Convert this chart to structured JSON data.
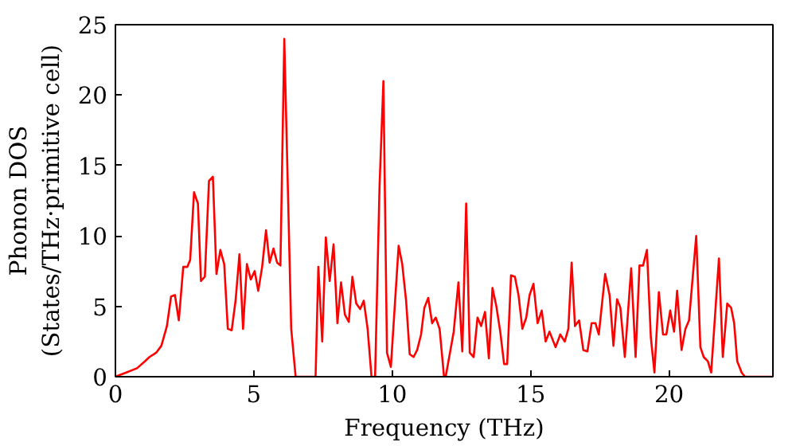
{
  "chart_data": {
    "type": "line",
    "xlabel": "Frequency (THz)",
    "ylabel": "Phonon DOS\n(States/THz·primitive cell)",
    "xlim": [
      0,
      23.75
    ],
    "ylim": [
      0,
      25
    ],
    "xticks": [
      0,
      5,
      10,
      15,
      20
    ],
    "yticks": [
      0,
      5,
      10,
      15,
      20,
      25
    ],
    "grid": false,
    "series": [
      {
        "color": "#ff0000",
        "x": [
          0,
          0.39,
          0.78,
          1.07,
          1.23,
          1.47,
          1.66,
          1.86,
          2.01,
          2.15,
          2.29,
          2.45,
          2.6,
          2.7,
          2.84,
          2.98,
          3.09,
          3.23,
          3.38,
          3.52,
          3.65,
          3.79,
          3.93,
          4.06,
          4.2,
          4.34,
          4.48,
          4.61,
          4.75,
          4.89,
          5.03,
          5.16,
          5.3,
          5.44,
          5.57,
          5.71,
          5.84,
          5.96,
          6.1,
          6.35,
          6.51,
          7.23,
          7.33,
          7.47,
          7.6,
          7.74,
          7.88,
          8.02,
          8.15,
          8.29,
          8.43,
          8.56,
          8.7,
          8.84,
          8.97,
          9.11,
          9.25,
          9.38,
          9.54,
          9.68,
          9.81,
          9.95,
          10.23,
          10.36,
          10.5,
          10.63,
          10.77,
          10.9,
          11.04,
          11.16,
          11.3,
          11.44,
          11.57,
          11.71,
          11.87,
          11.93,
          12.22,
          12.39,
          12.53,
          12.67,
          12.8,
          12.94,
          13.08,
          13.21,
          13.35,
          13.49,
          13.62,
          13.76,
          13.9,
          14.04,
          14.15,
          14.29,
          14.43,
          14.56,
          14.7,
          14.84,
          14.96,
          15.1,
          15.25,
          15.4,
          15.54,
          15.68,
          15.9,
          16.07,
          16.23,
          16.36,
          16.48,
          16.6,
          16.75,
          16.9,
          17.05,
          17.2,
          17.34,
          17.46,
          17.69,
          17.85,
          17.99,
          18.12,
          18.24,
          18.4,
          18.63,
          18.79,
          18.93,
          19.06,
          19.2,
          19.34,
          19.47,
          19.63,
          19.78,
          19.9,
          20.04,
          20.18,
          20.29,
          20.45,
          20.59,
          20.72,
          20.98,
          21.13,
          21.25,
          21.4,
          21.52,
          21.8,
          21.94,
          22.1,
          22.24,
          22.35,
          22.46,
          22.62,
          22.74,
          23.75
        ],
        "values": [
          0,
          0.3,
          0.6,
          1.1,
          1.4,
          1.7,
          2.2,
          3.6,
          5.7,
          5.8,
          4.0,
          7.8,
          7.8,
          8.3,
          13.1,
          12.3,
          6.8,
          7.1,
          13.9,
          14.2,
          7.3,
          9.0,
          8.0,
          3.4,
          3.3,
          5.4,
          8.7,
          3.4,
          8.0,
          6.9,
          7.5,
          6.1,
          7.8,
          10.4,
          8.1,
          9.1,
          8.1,
          7.9,
          24.0,
          3.4,
          0,
          0,
          7.8,
          2.5,
          9.9,
          6.8,
          9.4,
          3.8,
          6.7,
          4.4,
          3.9,
          7.1,
          5.2,
          4.8,
          5.4,
          3.4,
          0,
          0,
          13.5,
          21.0,
          1.7,
          0.7,
          9.3,
          8.0,
          5.4,
          1.6,
          1.4,
          1.9,
          3.0,
          4.9,
          5.6,
          3.8,
          4.2,
          3.4,
          0,
          0,
          3.2,
          6.7,
          1.8,
          12.3,
          1.7,
          1.4,
          4.2,
          3.6,
          4.6,
          1.3,
          6.3,
          5.0,
          3.2,
          0.9,
          0.9,
          7.2,
          7.1,
          5.8,
          3.4,
          4.2,
          5.8,
          6.6,
          3.8,
          4.7,
          2.5,
          3.2,
          2.1,
          3.0,
          2.5,
          3.4,
          8.1,
          3.6,
          4.0,
          1.9,
          1.8,
          3.8,
          3.8,
          3.0,
          7.3,
          5.8,
          2.2,
          5.5,
          4.9,
          1.4,
          7.7,
          1.4,
          7.9,
          7.9,
          9.0,
          2.8,
          0.3,
          6.0,
          3.0,
          3.0,
          4.7,
          3.2,
          6.1,
          1.9,
          3.4,
          4.0,
          10.0,
          2.1,
          1.4,
          1.1,
          0.3,
          8.4,
          1.4,
          5.2,
          4.9,
          3.8,
          1.1,
          0.3,
          0,
          0
        ]
      }
    ]
  }
}
